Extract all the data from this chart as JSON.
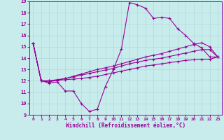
{
  "xlabel": "Windchill (Refroidissement éolien,°C)",
  "bg_color": "#c8ecec",
  "line_color": "#990099",
  "grid_color": "#b0d8d8",
  "xlim": [
    -0.5,
    23.5
  ],
  "ylim": [
    9,
    19
  ],
  "xticks": [
    0,
    1,
    2,
    3,
    4,
    5,
    6,
    7,
    8,
    9,
    10,
    11,
    12,
    13,
    14,
    15,
    16,
    17,
    18,
    19,
    20,
    21,
    22,
    23
  ],
  "yticks": [
    9,
    10,
    11,
    12,
    13,
    14,
    15,
    16,
    17,
    18,
    19
  ],
  "line1_x": [
    0,
    1,
    2,
    3,
    4,
    5,
    6,
    7,
    8,
    9,
    10,
    11,
    12,
    13,
    14,
    15,
    16,
    17,
    18,
    19,
    20,
    21,
    22,
    23
  ],
  "line1_y": [
    15.3,
    12.0,
    11.8,
    11.9,
    11.1,
    11.1,
    10.0,
    9.3,
    9.5,
    11.5,
    13.0,
    14.8,
    18.9,
    18.7,
    18.4,
    17.5,
    17.6,
    17.5,
    16.6,
    16.0,
    15.3,
    14.9,
    14.1,
    14.1
  ],
  "line2_x": [
    0,
    1,
    2,
    3,
    4,
    5,
    6,
    7,
    8,
    9,
    10,
    11,
    12,
    13,
    14,
    15,
    16,
    17,
    18,
    19,
    20,
    21,
    22,
    23
  ],
  "line2_y": [
    15.3,
    12.0,
    12.0,
    12.05,
    12.1,
    12.15,
    12.2,
    12.3,
    12.4,
    12.55,
    12.7,
    12.85,
    13.0,
    13.15,
    13.3,
    13.4,
    13.5,
    13.6,
    13.7,
    13.8,
    13.85,
    13.9,
    13.9,
    14.1
  ],
  "line3_x": [
    0,
    1,
    2,
    3,
    4,
    5,
    6,
    7,
    8,
    9,
    10,
    11,
    12,
    13,
    14,
    15,
    16,
    17,
    18,
    19,
    20,
    21,
    22,
    23
  ],
  "line3_y": [
    15.3,
    12.0,
    12.0,
    12.1,
    12.2,
    12.35,
    12.5,
    12.65,
    12.8,
    12.95,
    13.1,
    13.3,
    13.5,
    13.65,
    13.8,
    13.9,
    14.0,
    14.15,
    14.3,
    14.45,
    14.6,
    14.75,
    14.75,
    14.1
  ],
  "line4_x": [
    0,
    1,
    2,
    3,
    4,
    5,
    6,
    7,
    8,
    9,
    10,
    11,
    12,
    13,
    14,
    15,
    16,
    17,
    18,
    19,
    20,
    21,
    22,
    23
  ],
  "line4_y": [
    15.3,
    12.0,
    11.9,
    12.05,
    12.2,
    12.4,
    12.6,
    12.8,
    13.0,
    13.15,
    13.3,
    13.5,
    13.7,
    13.9,
    14.1,
    14.25,
    14.4,
    14.6,
    14.8,
    15.0,
    15.2,
    15.35,
    15.0,
    14.1
  ]
}
